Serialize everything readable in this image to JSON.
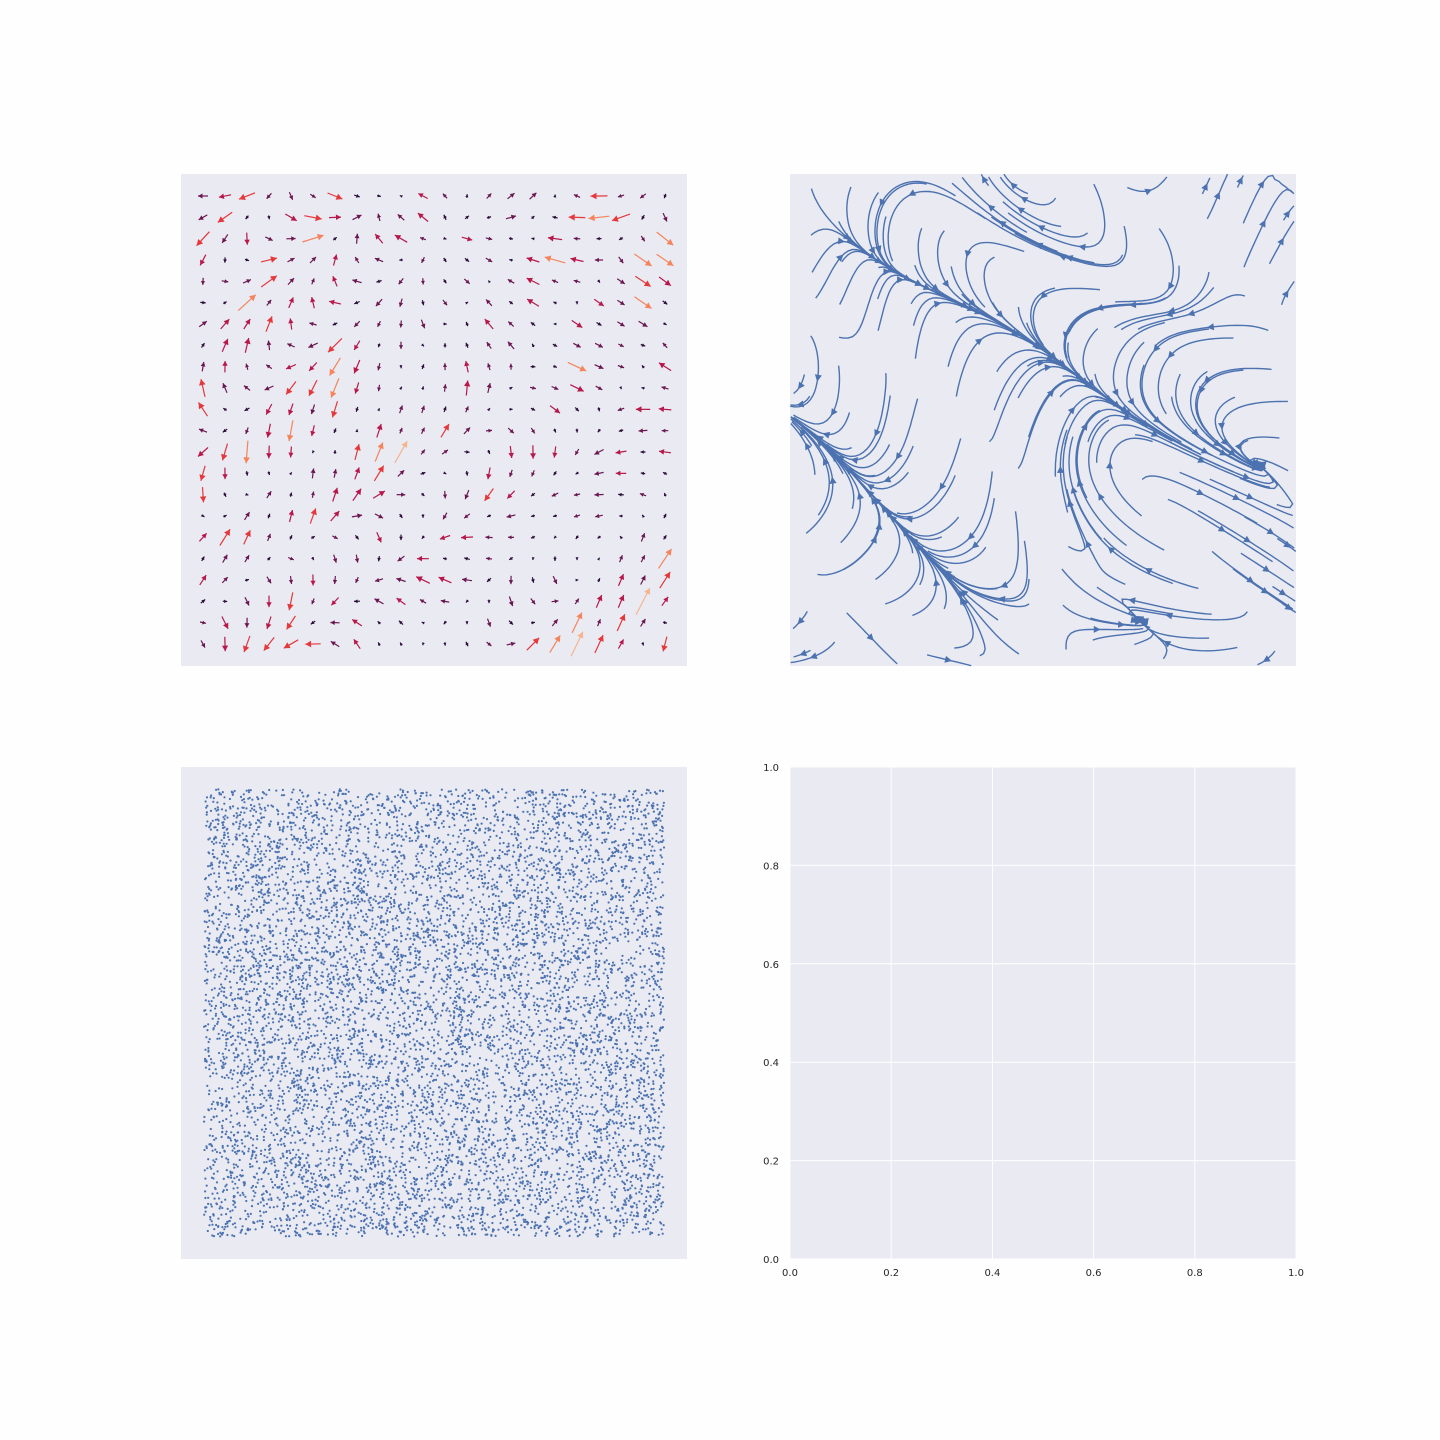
{
  "figure": {
    "background": "#fefefe",
    "axes_background": "#e9eaf2",
    "grid_color": "#ffffff"
  },
  "chart_data": [
    {
      "panel": "top-left",
      "type": "quiver",
      "grid": false,
      "axes_visible": false,
      "xlim": [
        0,
        1
      ],
      "ylim": [
        0,
        1
      ],
      "grid_points": [
        22,
        22
      ],
      "colormap": [
        "#2b0f3a",
        "#6b1650",
        "#b8174a",
        "#e5383b",
        "#f5845c",
        "#f6b48e"
      ],
      "notes_visible": "arrows colored by magnitude from dark purple (short) to light orange (long)"
    },
    {
      "panel": "top-right",
      "type": "streamplot",
      "grid": false,
      "axes_visible": false,
      "xlim": [
        0,
        1
      ],
      "ylim": [
        0,
        1
      ],
      "color": "#4c72b0"
    },
    {
      "panel": "bottom-left",
      "type": "scatter",
      "grid": false,
      "axes_visible": false,
      "xlim": [
        -0.05,
        1.05
      ],
      "ylim": [
        -0.05,
        1.05
      ],
      "point_range": [
        0,
        1
      ],
      "n_points": 9000,
      "color": "#4c72b0"
    },
    {
      "panel": "bottom-right",
      "type": "empty",
      "grid": true,
      "axes_visible": true,
      "xlim": [
        0,
        1
      ],
      "ylim": [
        0,
        1
      ],
      "xticks": [
        "0.0",
        "0.2",
        "0.4",
        "0.6",
        "0.8",
        "1.0"
      ],
      "yticks": [
        "0.0",
        "0.2",
        "0.4",
        "0.6",
        "0.8",
        "1.0"
      ]
    }
  ]
}
